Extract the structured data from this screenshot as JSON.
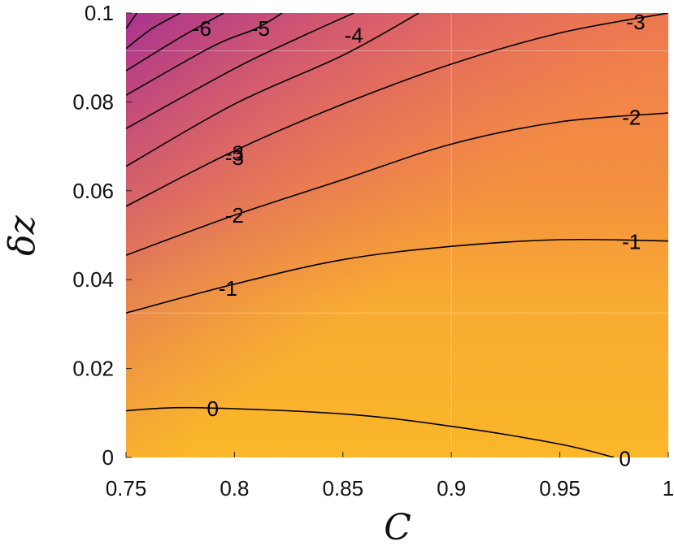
{
  "chart_data": {
    "type": "contour",
    "title": "",
    "xlabel": "C",
    "ylabel": "δz",
    "xlim": [
      0.75,
      1.0
    ],
    "ylim": [
      0,
      0.1
    ],
    "x_ticks": [
      0.75,
      0.8,
      0.85,
      0.9,
      0.95,
      1
    ],
    "x_tick_labels": [
      "0.75",
      "0.8",
      "0.85",
      "0.9",
      "0.95",
      "1"
    ],
    "y_ticks": [
      0,
      0.02,
      0.04,
      0.06,
      0.08,
      0.1
    ],
    "y_tick_labels": [
      "0",
      "0.02",
      "0.04",
      "0.06",
      "0.08",
      "0.1"
    ],
    "colormap": {
      "low": "#a42e93",
      "mid": "#f0824a",
      "high": "#fbb72a"
    },
    "contours": [
      {
        "level": 0,
        "label": "0",
        "points": [
          [
            0.75,
            0.0105
          ],
          [
            0.78,
            0.0112
          ],
          [
            0.85,
            0.0098
          ],
          [
            0.9,
            0.007
          ],
          [
            0.95,
            0.003
          ],
          [
            0.975,
            0.0
          ]
        ],
        "labels_at": [
          [
            0.79,
            0.011
          ],
          [
            0.98,
            -0.0003
          ]
        ]
      },
      {
        "level": -1,
        "label": "-1",
        "points": [
          [
            0.75,
            0.0325
          ],
          [
            0.8,
            0.039
          ],
          [
            0.85,
            0.0445
          ],
          [
            0.9,
            0.0475
          ],
          [
            0.95,
            0.049
          ],
          [
            1.0,
            0.0487
          ]
        ],
        "labels_at": [
          [
            0.797,
            0.038
          ],
          [
            0.983,
            0.0485
          ]
        ]
      },
      {
        "level": -2,
        "label": "-2",
        "points": [
          [
            0.75,
            0.0455
          ],
          [
            0.8,
            0.0545
          ],
          [
            0.85,
            0.0625
          ],
          [
            0.9,
            0.0705
          ],
          [
            0.95,
            0.0755
          ],
          [
            1.0,
            0.0775
          ]
        ],
        "labels_at": [
          [
            0.8,
            0.0545
          ],
          [
            0.983,
            0.0765
          ]
        ]
      },
      {
        "level": -3,
        "label": "-3",
        "points": [
          [
            0.75,
            0.0565
          ],
          [
            0.8,
            0.069
          ],
          [
            0.85,
            0.0795
          ],
          [
            0.9,
            0.0885
          ],
          [
            0.95,
            0.0955
          ],
          [
            1.0,
            0.1
          ]
        ],
        "labels_at": [
          [
            0.8,
            0.0675
          ],
          [
            0.985,
            0.098
          ]
        ]
      },
      {
        "level": -3,
        "label": "-3",
        "points": [
          [
            0.75,
            0.0655
          ],
          [
            0.8,
            0.0795
          ],
          [
            0.85,
            0.0905
          ],
          [
            0.885,
            0.1
          ]
        ],
        "labels_at": [
          [
            0.8,
            0.0685
          ]
        ]
      },
      {
        "level": -4,
        "label": "-4",
        "points": [
          [
            0.75,
            0.074
          ],
          [
            0.8,
            0.0875
          ],
          [
            0.83,
            0.0945
          ],
          [
            0.855,
            0.1
          ]
        ],
        "labels_at": [
          [
            0.855,
            0.095
          ]
        ]
      },
      {
        "level": -5,
        "label": "-5",
        "points": [
          [
            0.75,
            0.0815
          ],
          [
            0.79,
            0.0925
          ],
          [
            0.81,
            0.0965
          ],
          [
            0.822,
            0.1
          ]
        ],
        "labels_at": [
          [
            0.812,
            0.0965
          ]
        ]
      },
      {
        "level": -6,
        "label": "-6",
        "points": [
          [
            0.75,
            0.087
          ],
          [
            0.775,
            0.0945
          ],
          [
            0.795,
            0.1
          ]
        ],
        "labels_at": [
          [
            0.785,
            0.0965
          ]
        ]
      },
      {
        "level": -7,
        "label": "",
        "points": [
          [
            0.75,
            0.092
          ],
          [
            0.762,
            0.0965
          ],
          [
            0.775,
            0.1
          ]
        ],
        "labels_at": []
      },
      {
        "level": -8,
        "label": "",
        "points": [
          [
            0.75,
            0.0965
          ],
          [
            0.755,
            0.1
          ]
        ],
        "labels_at": []
      }
    ]
  }
}
